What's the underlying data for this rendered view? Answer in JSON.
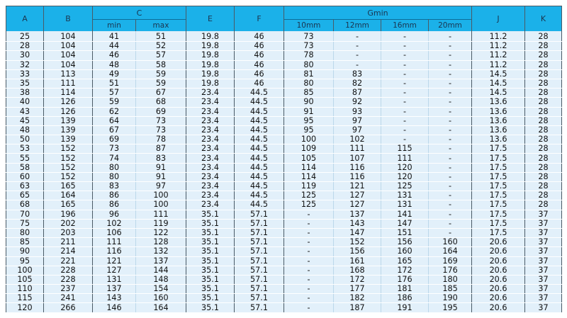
{
  "headers": {
    "A": "A",
    "B": "B",
    "C": "C",
    "C_min": "min",
    "C_max": "max",
    "E": "E",
    "F": "F",
    "G": "Gmin",
    "G_10": "10mm",
    "G_12": "12mm",
    "G_16": "16mm",
    "G_20": "20mm",
    "J": "J",
    "K": "K"
  },
  "colors": {
    "header": "#1bb1e9",
    "row": "#e2f0fa",
    "border": "#4a5a66"
  },
  "rows": [
    [
      "25",
      "104",
      "41",
      "51",
      "19.8",
      "46",
      "73",
      "-",
      "-",
      "-",
      "11.2",
      "28"
    ],
    [
      "28",
      "104",
      "44",
      "52",
      "19.8",
      "46",
      "73",
      "-",
      "-",
      "-",
      "11.2",
      "28"
    ],
    [
      "30",
      "104",
      "46",
      "57",
      "19.8",
      "46",
      "78",
      "-",
      "-",
      "-",
      "11.2",
      "28"
    ],
    [
      "32",
      "104",
      "48",
      "58",
      "19.8",
      "46",
      "80",
      "-",
      "-",
      "-",
      "11.2",
      "28"
    ],
    [
      "33",
      "113",
      "49",
      "59",
      "19.8",
      "46",
      "81",
      "83",
      "-",
      "-",
      "14.5",
      "28"
    ],
    [
      "35",
      "111",
      "51",
      "59",
      "19.8",
      "46",
      "80",
      "82",
      "-",
      "-",
      "14.5",
      "28"
    ],
    [
      "38",
      "114",
      "57",
      "67",
      "23.4",
      "44.5",
      "85",
      "87",
      "-",
      "-",
      "14.5",
      "28"
    ],
    [
      "40",
      "126",
      "59",
      "68",
      "23.4",
      "44.5",
      "90",
      "92",
      "-",
      "-",
      "13.6",
      "28"
    ],
    [
      "43",
      "126",
      "62",
      "69",
      "23.4",
      "44.5",
      "91",
      "93",
      "-",
      "-",
      "13.6",
      "28"
    ],
    [
      "45",
      "139",
      "64",
      "73",
      "23.4",
      "44.5",
      "95",
      "97",
      "-",
      "-",
      "13.6",
      "28"
    ],
    [
      "48",
      "139",
      "67",
      "73",
      "23.4",
      "44.5",
      "95",
      "97",
      "-",
      "-",
      "13.6",
      "28"
    ],
    [
      "50",
      "139",
      "69",
      "78",
      "23.4",
      "44.5",
      "100",
      "102",
      "-",
      "-",
      "13.6",
      "28"
    ],
    [
      "53",
      "152",
      "73",
      "87",
      "23.4",
      "44.5",
      "109",
      "111",
      "115",
      "-",
      "17.5",
      "28"
    ],
    [
      "55",
      "152",
      "74",
      "83",
      "23.4",
      "44.5",
      "105",
      "107",
      "111",
      "-",
      "17.5",
      "28"
    ],
    [
      "58",
      "152",
      "80",
      "91",
      "23.4",
      "44.5",
      "114",
      "116",
      "120",
      "-",
      "17.5",
      "28"
    ],
    [
      "60",
      "152",
      "80",
      "91",
      "23.4",
      "44.5",
      "114",
      "116",
      "120",
      "-",
      "17.5",
      "28"
    ],
    [
      "63",
      "165",
      "83",
      "97",
      "23.4",
      "44.5",
      "119",
      "121",
      "125",
      "-",
      "17.5",
      "28"
    ],
    [
      "65",
      "164",
      "86",
      "100",
      "23.4",
      "44.5",
      "125",
      "127",
      "131",
      "-",
      "17.5",
      "28"
    ],
    [
      "68",
      "165",
      "86",
      "100",
      "23.4",
      "44.5",
      "125",
      "127",
      "131",
      "-",
      "17.5",
      "28"
    ],
    [
      "70",
      "196",
      "96",
      "111",
      "35.1",
      "57.1",
      "-",
      "137",
      "141",
      "-",
      "17.5",
      "37"
    ],
    [
      "75",
      "202",
      "102",
      "119",
      "35.1",
      "57.1",
      "-",
      "143",
      "147",
      "-",
      "17.5",
      "37"
    ],
    [
      "80",
      "203",
      "106",
      "122",
      "35.1",
      "57.1",
      "-",
      "147",
      "151",
      "-",
      "17.5",
      "37"
    ],
    [
      "85",
      "211",
      "111",
      "128",
      "35.1",
      "57.1",
      "-",
      "152",
      "156",
      "160",
      "20.6",
      "37"
    ],
    [
      "90",
      "214",
      "116",
      "132",
      "35.1",
      "57.1",
      "-",
      "156",
      "160",
      "164",
      "20.6",
      "37"
    ],
    [
      "95",
      "221",
      "121",
      "137",
      "35.1",
      "57.1",
      "-",
      "161",
      "165",
      "169",
      "20.6",
      "37"
    ],
    [
      "100",
      "228",
      "127",
      "144",
      "35.1",
      "57.1",
      "-",
      "168",
      "172",
      "176",
      "20.6",
      "37"
    ],
    [
      "105",
      "228",
      "131",
      "148",
      "35.1",
      "57.1",
      "-",
      "172",
      "176",
      "180",
      "20.6",
      "37"
    ],
    [
      "110",
      "237",
      "137",
      "154",
      "35.1",
      "57.1",
      "-",
      "177",
      "181",
      "185",
      "20.6",
      "37"
    ],
    [
      "115",
      "241",
      "143",
      "160",
      "35.1",
      "57.1",
      "-",
      "182",
      "186",
      "190",
      "20.6",
      "37"
    ],
    [
      "120",
      "266",
      "146",
      "164",
      "35.1",
      "57.1",
      "-",
      "187",
      "191",
      "195",
      "20.6",
      "37"
    ]
  ]
}
